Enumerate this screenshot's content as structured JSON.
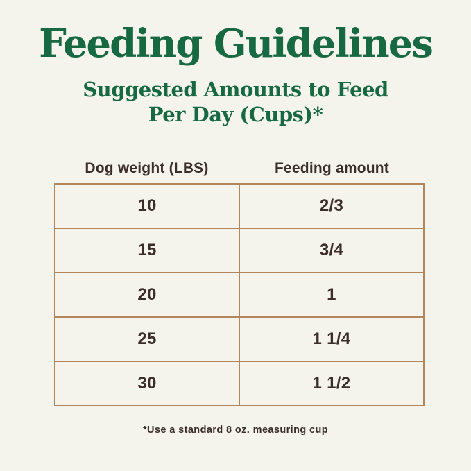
{
  "page": {
    "title": "Feeding Guidelines",
    "subtitle_line1": "Suggested Amounts to Feed",
    "subtitle_line2": "Per Day (Cups)*",
    "footnote": "*Use a standard 8 oz. measuring cup"
  },
  "table": {
    "columns": [
      "Dog weight (LBS)",
      "Feeding amount"
    ],
    "rows": [
      {
        "weight": "10",
        "amount": "2/3"
      },
      {
        "weight": "15",
        "amount": "3/4"
      },
      {
        "weight": "20",
        "amount": "1"
      },
      {
        "weight": "25",
        "amount": "1 1/4"
      },
      {
        "weight": "30",
        "amount": "1 1/2"
      }
    ]
  },
  "colors": {
    "background": "#f4f3ec",
    "heading_green": "#176942",
    "text_dark": "#3b2e29",
    "table_border": "#b2855a"
  },
  "chart_data": {
    "type": "table",
    "title": "Feeding Guidelines",
    "subtitle": "Suggested Amounts to Feed Per Day (Cups)*",
    "columns": [
      "Dog weight (LBS)",
      "Feeding amount"
    ],
    "rows": [
      [
        "10",
        "2/3"
      ],
      [
        "15",
        "3/4"
      ],
      [
        "20",
        "1"
      ],
      [
        "25",
        "1 1/4"
      ],
      [
        "30",
        "1 1/2"
      ]
    ],
    "units": {
      "dog_weight": "LBS",
      "feeding_amount": "cups per day"
    },
    "footnote": "*Use a standard 8 oz. measuring cup"
  }
}
